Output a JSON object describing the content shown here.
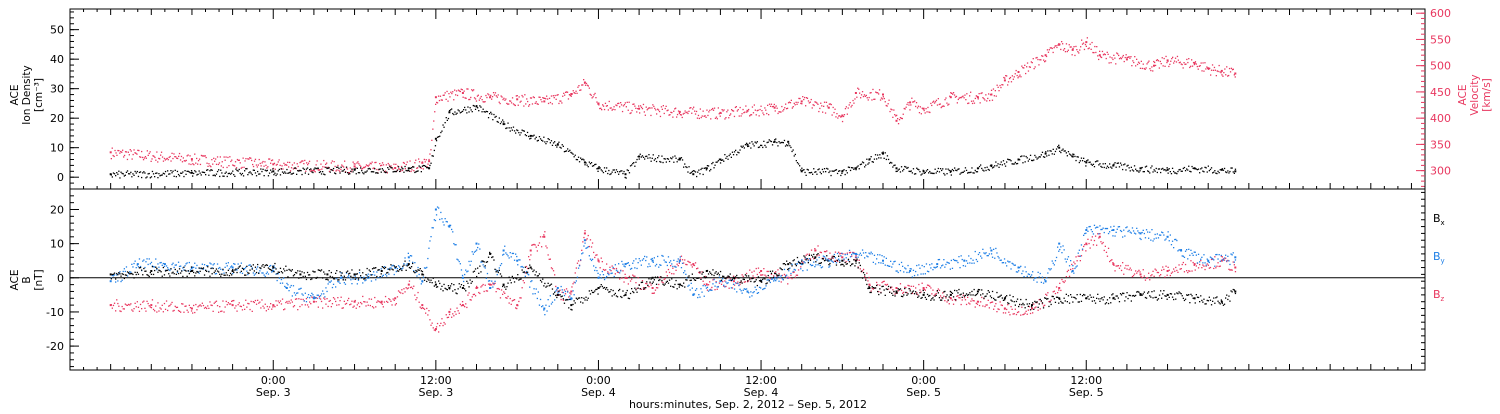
{
  "colors": {
    "black": "#000000",
    "pink": "#e8375f",
    "blue": "#1e7fe6"
  },
  "chart_data": [
    {
      "type": "scatter",
      "panel": "plasma",
      "left_axis": {
        "label_lines": [
          "ACE",
          "Ion Density",
          "[cm⁻³]"
        ],
        "ylim": [
          -4,
          57
        ],
        "ticks": [
          0,
          10,
          20,
          30,
          40,
          50
        ]
      },
      "right_axis": {
        "label_lines": [
          "ACE",
          "Velocity",
          "[km/s]"
        ],
        "ylim": [
          265,
          608
        ],
        "ticks": [
          300,
          350,
          400,
          450,
          500,
          550,
          600
        ]
      },
      "series": [
        {
          "color": "#000000",
          "axis": "left",
          "points": [
            [
              -12,
              1
            ],
            [
              -6,
              1.5
            ],
            [
              0,
              2
            ],
            [
              6,
              2.5
            ],
            [
              10,
              3
            ],
            [
              11.5,
              3
            ],
            [
              12,
              13
            ],
            [
              13,
              22
            ],
            [
              15,
              24
            ],
            [
              17,
              18
            ],
            [
              19,
              14
            ],
            [
              21,
              11
            ],
            [
              23,
              5
            ],
            [
              24,
              3
            ],
            [
              26,
              1
            ],
            [
              27,
              7
            ],
            [
              30,
              6
            ],
            [
              31,
              1
            ],
            [
              32,
              3
            ],
            [
              33,
              6
            ],
            [
              35,
              11
            ],
            [
              37,
              12
            ],
            [
              38,
              12
            ],
            [
              39,
              2
            ],
            [
              42,
              2
            ],
            [
              43,
              3
            ],
            [
              44,
              6
            ],
            [
              45,
              8
            ],
            [
              46,
              3
            ],
            [
              48,
              2
            ],
            [
              50,
              2
            ],
            [
              52,
              3
            ],
            [
              53,
              4
            ],
            [
              55,
              6
            ],
            [
              57,
              8
            ],
            [
              58,
              10
            ],
            [
              59,
              7
            ],
            [
              60,
              5
            ],
            [
              62,
              4
            ],
            [
              64,
              3
            ],
            [
              66,
              2.5
            ],
            [
              68,
              3
            ],
            [
              70,
              2.5
            ],
            [
              71,
              2
            ]
          ]
        },
        {
          "color": "#e8375f",
          "axis": "right",
          "points": [
            [
              -12,
              335
            ],
            [
              -6,
              322
            ],
            [
              0,
              312
            ],
            [
              6,
              308
            ],
            [
              9,
              305
            ],
            [
              11,
              315
            ],
            [
              11.5,
              318
            ],
            [
              12,
              440
            ],
            [
              14,
              448
            ],
            [
              16,
              440
            ],
            [
              18,
              436
            ],
            [
              20,
              432
            ],
            [
              22,
              446
            ],
            [
              23,
              468
            ],
            [
              24,
              428
            ],
            [
              27,
              418
            ],
            [
              30,
              412
            ],
            [
              33,
              410
            ],
            [
              35,
              414
            ],
            [
              37,
              420
            ],
            [
              39,
              432
            ],
            [
              41,
              420
            ],
            [
              42,
              405
            ],
            [
              43,
              448
            ],
            [
              45,
              445
            ],
            [
              46,
              395
            ],
            [
              47,
              430
            ],
            [
              48,
              418
            ],
            [
              50,
              440
            ],
            [
              52,
              440
            ],
            [
              53,
              445
            ],
            [
              54,
              472
            ],
            [
              55,
              488
            ],
            [
              57,
              520
            ],
            [
              58,
              540
            ],
            [
              59,
              530
            ],
            [
              60,
              545
            ],
            [
              61,
              520
            ],
            [
              63,
              512
            ],
            [
              65,
              500
            ],
            [
              66,
              510
            ],
            [
              68,
              505
            ],
            [
              69,
              495
            ],
            [
              70,
              490
            ],
            [
              71,
              485
            ]
          ]
        }
      ]
    },
    {
      "type": "scatter",
      "panel": "magnetic_field",
      "left_axis": {
        "label_lines": [
          "ACE",
          "B",
          "[nT]"
        ],
        "ylim": [
          -27,
          26
        ],
        "ticks": [
          -20,
          -10,
          0,
          10,
          20
        ]
      },
      "zero_line": true,
      "series": [
        {
          "name": "Bx",
          "color": "#000000",
          "points": [
            [
              -12,
              1
            ],
            [
              -9,
              2
            ],
            [
              -6,
              2
            ],
            [
              -3,
              2
            ],
            [
              0,
              3
            ],
            [
              2,
              1
            ],
            [
              4,
              1
            ],
            [
              6,
              1
            ],
            [
              8,
              2
            ],
            [
              10,
              4
            ],
            [
              11,
              1
            ],
            [
              12,
              -2
            ],
            [
              13,
              -3
            ],
            [
              14,
              -3
            ],
            [
              16,
              7
            ],
            [
              17,
              -2
            ],
            [
              19,
              3
            ],
            [
              21,
              -5
            ],
            [
              22,
              -8
            ],
            [
              24,
              -3
            ],
            [
              26,
              -5
            ],
            [
              28,
              0
            ],
            [
              30,
              -2
            ],
            [
              32,
              2
            ],
            [
              34,
              0
            ],
            [
              36,
              -1
            ],
            [
              38,
              4
            ],
            [
              40,
              6
            ],
            [
              42,
              5
            ],
            [
              43,
              5
            ],
            [
              44,
              -3
            ],
            [
              46,
              -4
            ],
            [
              48,
              -5
            ],
            [
              50,
              -5
            ],
            [
              52,
              -4
            ],
            [
              54,
              -6
            ],
            [
              56,
              -8
            ],
            [
              58,
              -6
            ],
            [
              60,
              -6
            ],
            [
              62,
              -6
            ],
            [
              64,
              -5
            ],
            [
              66,
              -5
            ],
            [
              68,
              -6
            ],
            [
              70,
              -7
            ],
            [
              71,
              -4
            ]
          ]
        },
        {
          "name": "By",
          "color": "#1e7fe6",
          "points": [
            [
              -12,
              -1
            ],
            [
              -10,
              4
            ],
            [
              -8,
              4
            ],
            [
              -6,
              3
            ],
            [
              -3,
              3
            ],
            [
              0,
              2
            ],
            [
              1,
              -3
            ],
            [
              3,
              -6
            ],
            [
              5,
              0
            ],
            [
              7,
              0
            ],
            [
              9,
              3
            ],
            [
              10,
              6
            ],
            [
              11,
              -1
            ],
            [
              12,
              20
            ],
            [
              13,
              15
            ],
            [
              14,
              0
            ],
            [
              15,
              10
            ],
            [
              16,
              -3
            ],
            [
              17,
              8
            ],
            [
              18,
              5
            ],
            [
              20,
              -9
            ],
            [
              21,
              -3
            ],
            [
              22,
              -6
            ],
            [
              23,
              11
            ],
            [
              24,
              0
            ],
            [
              26,
              4
            ],
            [
              28,
              5
            ],
            [
              30,
              5
            ],
            [
              31,
              -5
            ],
            [
              33,
              -1
            ],
            [
              35,
              -4
            ],
            [
              37,
              0
            ],
            [
              39,
              4
            ],
            [
              41,
              5
            ],
            [
              43,
              7
            ],
            [
              45,
              5
            ],
            [
              47,
              2
            ],
            [
              49,
              4
            ],
            [
              51,
              5
            ],
            [
              53,
              8
            ],
            [
              55,
              3
            ],
            [
              57,
              -1
            ],
            [
              58,
              10
            ],
            [
              59,
              2
            ],
            [
              60,
              14
            ],
            [
              62,
              14
            ],
            [
              64,
              13
            ],
            [
              66,
              12
            ],
            [
              67,
              8
            ],
            [
              69,
              5
            ],
            [
              71,
              6
            ]
          ]
        },
        {
          "name": "Bz",
          "color": "#e8375f",
          "points": [
            [
              -12,
              -8
            ],
            [
              -9,
              -8
            ],
            [
              -6,
              -9
            ],
            [
              -3,
              -8
            ],
            [
              0,
              -8
            ],
            [
              3,
              -7
            ],
            [
              6,
              -7
            ],
            [
              8,
              -7
            ],
            [
              9,
              -6
            ],
            [
              10,
              -2
            ],
            [
              11,
              -8
            ],
            [
              12,
              -15
            ],
            [
              13,
              -10
            ],
            [
              14,
              -8
            ],
            [
              15,
              -3
            ],
            [
              16,
              -2
            ],
            [
              18,
              -8
            ],
            [
              19,
              8
            ],
            [
              20,
              12
            ],
            [
              21,
              -5
            ],
            [
              22,
              -4
            ],
            [
              23,
              13
            ],
            [
              24,
              5
            ],
            [
              26,
              0
            ],
            [
              28,
              -3
            ],
            [
              30,
              5
            ],
            [
              31,
              4
            ],
            [
              32,
              -2
            ],
            [
              34,
              -1
            ],
            [
              36,
              2
            ],
            [
              38,
              0
            ],
            [
              40,
              8
            ],
            [
              42,
              6
            ],
            [
              43,
              6
            ],
            [
              44,
              -2
            ],
            [
              46,
              -3
            ],
            [
              48,
              -3
            ],
            [
              50,
              -6
            ],
            [
              52,
              -7
            ],
            [
              54,
              -9
            ],
            [
              56,
              -9
            ],
            [
              58,
              -3
            ],
            [
              60,
              10
            ],
            [
              61,
              12
            ],
            [
              62,
              4
            ],
            [
              64,
              1
            ],
            [
              66,
              2
            ],
            [
              68,
              4
            ],
            [
              70,
              5
            ],
            [
              71,
              3
            ]
          ]
        }
      ],
      "legend": [
        "Bx",
        "By",
        "Bz"
      ],
      "legend_placement": "right"
    }
  ],
  "x_axis": {
    "range_hours": [
      -15,
      85
    ],
    "major_ticks": [
      {
        "h": 0,
        "time": "0:00",
        "date": "Sep. 3"
      },
      {
        "h": 12,
        "time": "12:00",
        "date": "Sep. 3"
      },
      {
        "h": 24,
        "time": "0:00",
        "date": "Sep. 4"
      },
      {
        "h": 36,
        "time": "12:00",
        "date": "Sep. 4"
      },
      {
        "h": 48,
        "time": "0:00",
        "date": "Sep. 5"
      },
      {
        "h": 60,
        "time": "12:00",
        "date": "Sep. 5"
      }
    ],
    "title": "hours:minutes, Sep.  2, 2012 – Sep.  5, 2012"
  }
}
